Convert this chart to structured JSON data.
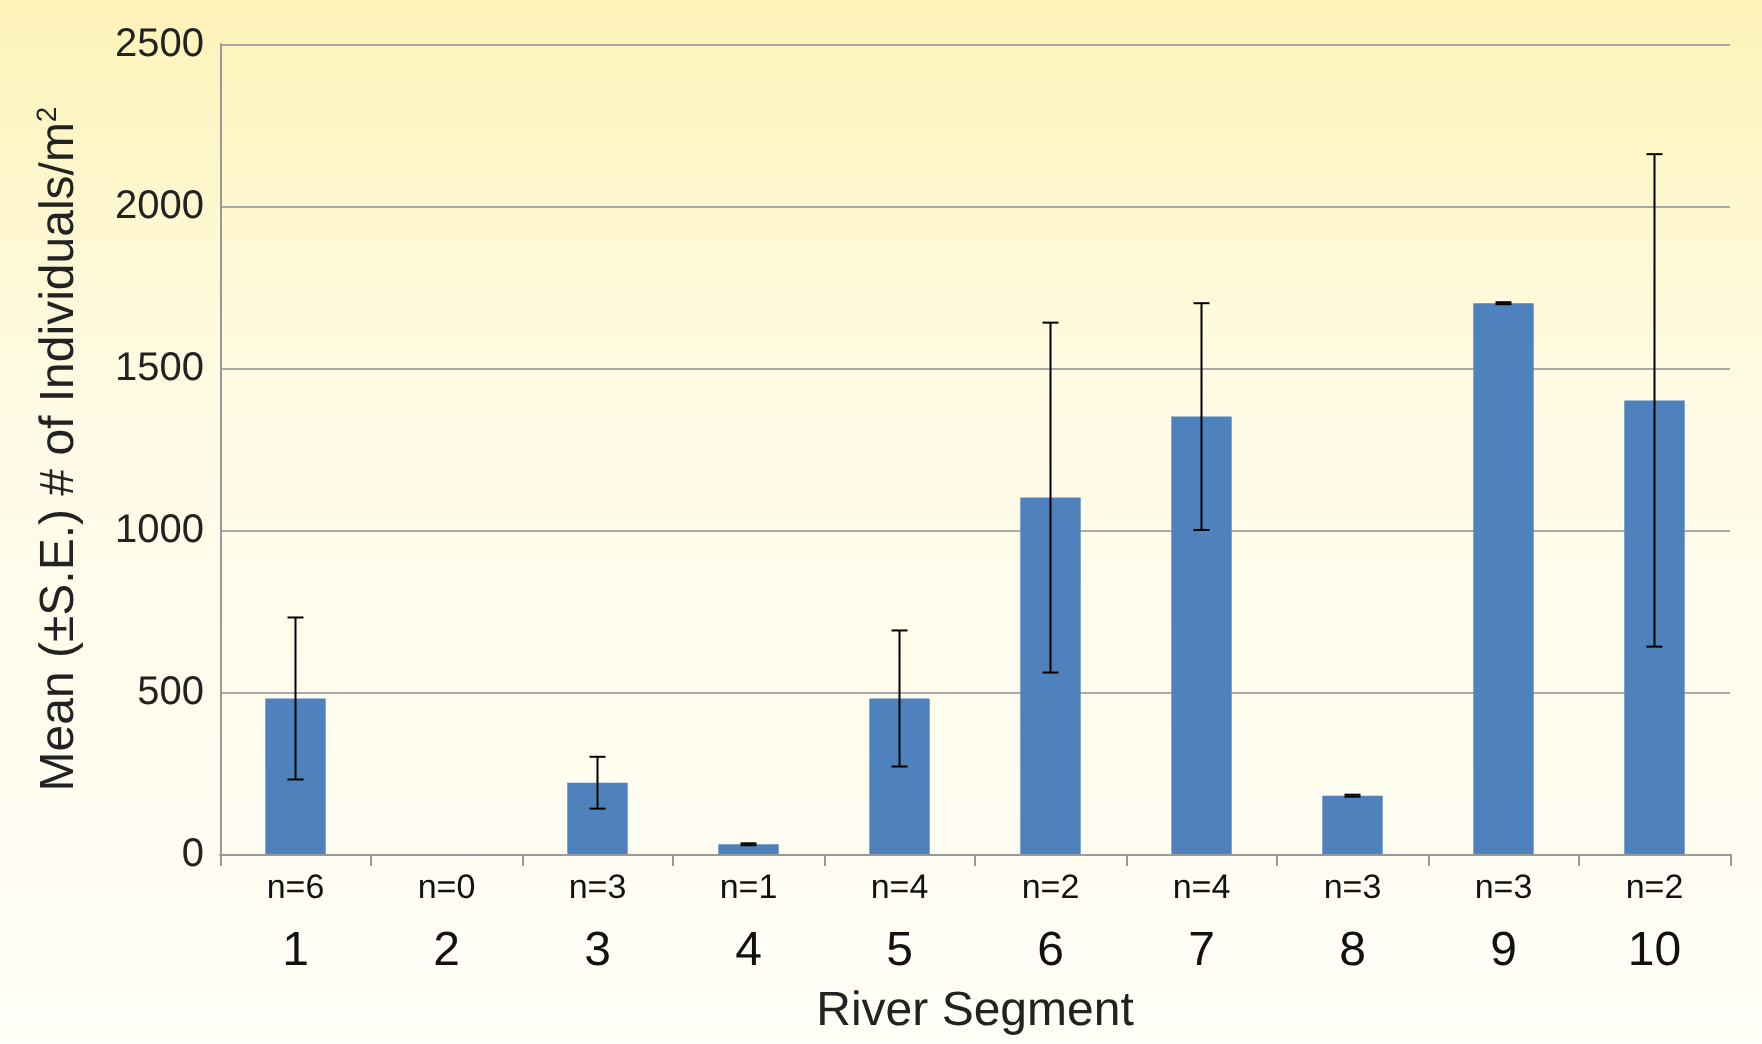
{
  "chart_data": {
    "type": "bar",
    "xlabel": "River Segment",
    "ylabel": "Mean (±S.E.) # of Individuals/m$^{2}$",
    "categories": [
      "1",
      "2",
      "3",
      "4",
      "5",
      "6",
      "7",
      "8",
      "9",
      "10"
    ],
    "values": [
      480,
      null,
      220,
      30,
      480,
      1100,
      1350,
      180,
      1700,
      1400
    ],
    "errors": [
      250,
      null,
      80,
      3,
      210,
      540,
      350,
      3,
      3,
      760
    ],
    "color": "#4f81bd",
    "ylim": [
      0,
      2500
    ],
    "yticks": [
      0,
      500,
      1000,
      1500,
      2000,
      2500
    ],
    "grid": "y",
    "annotations": [
      "n=6",
      "n=0",
      "n=3",
      "n=1",
      "n=4",
      "n=2",
      "n=4",
      "n=3",
      "n=3",
      "n=2"
    ]
  }
}
